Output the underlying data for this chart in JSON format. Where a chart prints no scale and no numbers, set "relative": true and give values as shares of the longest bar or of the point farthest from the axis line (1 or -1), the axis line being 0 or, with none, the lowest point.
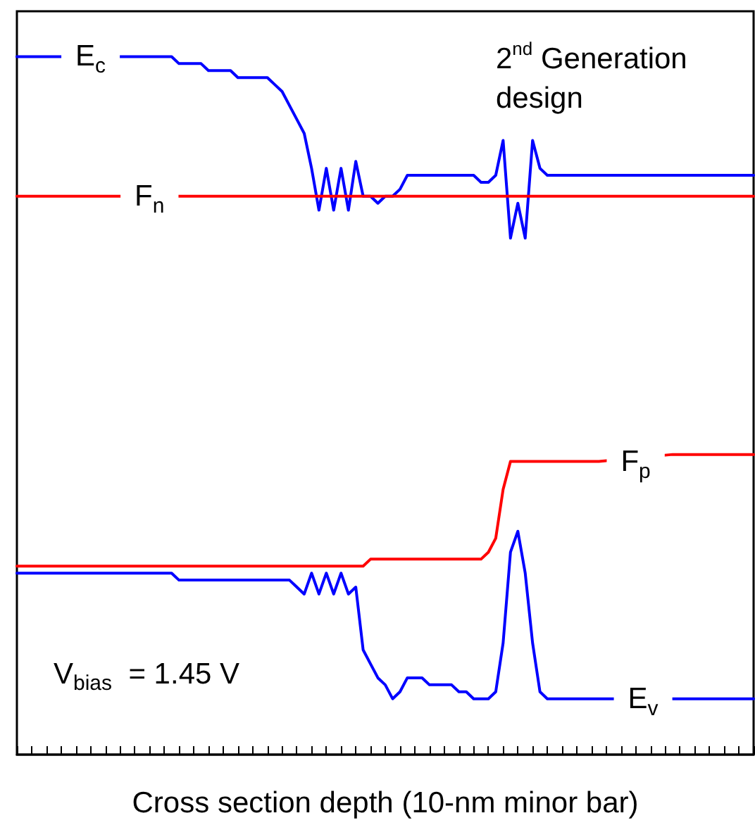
{
  "chart_data": {
    "type": "line",
    "relative": true,
    "xlabel": "Cross section depth (10-nm minor bar)",
    "legend": false,
    "tick_labels": false,
    "line_style": "solid",
    "annotations": [
      "2$^{nd}$ Generation design",
      "V$_{bias}$ = 1.45 V"
    ],
    "categories": [
      null,
      null,
      null,
      null,
      null,
      null,
      null,
      null,
      null,
      null,
      null,
      null,
      null,
      null,
      null,
      null,
      null,
      null,
      null,
      null,
      null,
      null,
      null,
      null,
      null,
      null,
      null,
      null,
      null,
      null,
      null,
      null,
      null,
      null,
      null,
      null,
      null,
      null,
      null,
      null,
      null,
      null,
      null,
      null,
      null,
      null,
      null,
      null,
      null,
      null,
      null,
      null,
      null,
      null,
      null,
      null,
      null,
      null,
      null,
      null,
      null,
      null,
      null,
      null,
      null,
      null,
      null,
      null,
      null,
      null,
      null,
      null,
      null,
      null,
      null,
      null,
      null,
      null,
      null,
      null,
      null,
      null,
      null,
      null,
      null,
      null,
      null,
      null,
      null,
      null,
      null,
      null,
      null,
      null,
      null,
      null,
      null,
      null,
      null,
      null,
      null
    ],
    "series": [
      {
        "name": "E$_{c}$",
        "color": "#0000ff",
        "values": [
          1.0,
          1.0,
          1.0,
          1.0,
          1.0,
          1.0,
          null,
          null,
          null,
          null,
          null,
          null,
          null,
          null,
          null,
          1.0,
          1.0,
          1.0,
          1.0,
          1.0,
          1.0,
          1.0,
          0.99,
          0.99,
          0.99,
          0.99,
          0.98,
          0.98,
          0.98,
          0.98,
          0.97,
          0.97,
          0.97,
          0.97,
          0.97,
          0.96,
          0.95,
          0.93,
          0.91,
          0.89,
          0.84,
          0.78,
          0.84,
          0.78,
          0.84,
          0.78,
          0.85,
          0.8,
          0.8,
          0.79,
          0.8,
          0.8,
          0.81,
          0.83,
          0.83,
          0.83,
          0.83,
          0.83,
          0.83,
          0.83,
          0.83,
          0.83,
          0.83,
          0.82,
          0.82,
          0.83,
          0.88,
          0.74,
          0.79,
          0.74,
          0.88,
          0.84,
          0.83,
          0.83,
          0.83,
          0.83,
          0.83,
          0.83,
          0.83,
          0.83,
          0.83,
          0.83,
          0.83,
          0.83,
          0.83,
          0.83,
          0.83,
          0.83,
          0.83,
          0.83,
          0.83,
          0.83,
          0.83,
          0.83,
          0.83,
          0.83,
          0.83,
          0.83,
          0.83,
          0.83,
          0.83
        ]
      },
      {
        "name": "F$_{n}$",
        "color": "#ff0000",
        "values": [
          0.8,
          0.8,
          0.8,
          0.8,
          0.8,
          0.8,
          0.8,
          0.8,
          0.8,
          0.8,
          0.8,
          0.8,
          0.8,
          0.8,
          null,
          null,
          null,
          null,
          null,
          null,
          null,
          null,
          null,
          0.8,
          0.8,
          0.8,
          0.8,
          0.8,
          0.8,
          0.8,
          0.8,
          0.8,
          0.8,
          0.8,
          0.8,
          0.8,
          0.8,
          0.8,
          0.8,
          0.8,
          0.8,
          0.8,
          0.8,
          0.8,
          0.8,
          0.8,
          0.8,
          0.8,
          0.8,
          0.8,
          0.8,
          0.8,
          0.8,
          0.8,
          0.8,
          0.8,
          0.8,
          0.8,
          0.8,
          0.8,
          0.8,
          0.8,
          0.8,
          0.8,
          0.8,
          0.8,
          0.8,
          0.8,
          0.8,
          0.8,
          0.8,
          0.8,
          0.8,
          0.8,
          0.8,
          0.8,
          0.8,
          0.8,
          0.8,
          0.8,
          0.8,
          0.8,
          0.8,
          0.8,
          0.8,
          0.8,
          0.8,
          0.8,
          0.8,
          0.8,
          0.8,
          0.8,
          0.8,
          0.8,
          0.8,
          0.8,
          0.8,
          0.8,
          0.8,
          0.8,
          0.8
        ]
      },
      {
        "name": "F$_{p}$",
        "color": "#ff0000",
        "values": [
          0.27,
          0.27,
          0.27,
          0.27,
          0.27,
          0.27,
          0.27,
          0.27,
          0.27,
          0.27,
          0.27,
          0.27,
          0.27,
          0.27,
          0.27,
          0.27,
          0.27,
          0.27,
          0.27,
          0.27,
          0.27,
          0.27,
          0.27,
          0.27,
          0.27,
          0.27,
          0.27,
          0.27,
          0.27,
          0.27,
          0.27,
          0.27,
          0.27,
          0.27,
          0.27,
          0.27,
          0.27,
          0.27,
          0.27,
          0.27,
          0.27,
          0.27,
          0.27,
          0.27,
          0.27,
          0.27,
          0.27,
          0.27,
          0.28,
          0.28,
          0.28,
          0.28,
          0.28,
          0.28,
          0.28,
          0.28,
          0.28,
          0.28,
          0.28,
          0.28,
          0.28,
          0.28,
          0.28,
          0.28,
          0.29,
          0.31,
          0.38,
          0.42,
          0.42,
          0.42,
          0.42,
          0.42,
          0.42,
          0.42,
          0.42,
          0.42,
          0.42,
          0.42,
          0.42,
          0.42,
          null,
          null,
          null,
          null,
          null,
          null,
          null,
          null,
          null,
          0.43,
          0.43,
          0.43,
          0.43,
          0.43,
          0.43,
          0.43,
          0.43,
          0.43,
          0.43,
          0.43,
          0.43
        ]
      },
      {
        "name": "E$_{v}$",
        "color": "#0000ff",
        "values": [
          0.26,
          0.26,
          0.26,
          0.26,
          0.26,
          0.26,
          0.26,
          0.26,
          0.26,
          0.26,
          0.26,
          0.26,
          0.26,
          0.26,
          0.26,
          0.26,
          0.26,
          0.26,
          0.26,
          0.26,
          0.26,
          0.26,
          0.25,
          0.25,
          0.25,
          0.25,
          0.25,
          0.25,
          0.25,
          0.25,
          0.25,
          0.25,
          0.25,
          0.25,
          0.25,
          0.25,
          0.25,
          0.25,
          0.24,
          0.23,
          0.26,
          0.23,
          0.26,
          0.23,
          0.26,
          0.23,
          0.24,
          0.15,
          0.13,
          0.11,
          0.1,
          0.08,
          0.09,
          0.11,
          0.11,
          0.11,
          0.1,
          0.1,
          0.1,
          0.1,
          0.09,
          0.09,
          0.08,
          0.08,
          0.08,
          0.09,
          0.16,
          0.29,
          0.32,
          0.26,
          0.16,
          0.09,
          0.08,
          0.08,
          0.08,
          0.08,
          0.08,
          0.08,
          0.08,
          0.08,
          0.08,
          null,
          null,
          null,
          null,
          null,
          null,
          null,
          null,
          null,
          0.08,
          0.08,
          0.08,
          0.08,
          0.08,
          0.08,
          0.08,
          0.08,
          0.08,
          0.08,
          0.08
        ]
      }
    ]
  }
}
